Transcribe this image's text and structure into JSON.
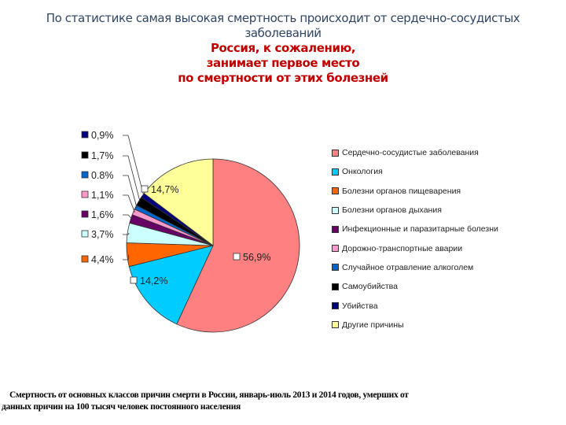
{
  "header": {
    "line1": "По статистике самая высокая смертность происходит от сердечно-сосудистых",
    "line2": "заболеваний",
    "line3": "Россия, к сожалению,",
    "line4": "занимает первое место",
    "line5": "по смертности от этих болезней"
  },
  "caption": {
    "line1": "Смертность от основных классов причин смерти в России, январь-июль 2013 и 2014 годов, умерших от",
    "line2": "данных причин на 100 тысяч человек постоянного населения"
  },
  "chart_data": {
    "type": "pie",
    "title": "",
    "start_angle_deg": 0,
    "direction": "clockwise",
    "legend_position": "right",
    "categories": [
      "Сердечно-сосудистые заболевания",
      "Онкология",
      "Болезни органов пищеварения",
      "Болезни органов дыхания",
      "Инфекционные и паразитарные болезни",
      "Дорожно-транспортные аварии",
      "Случайное отравление алкоголем",
      "Самоубийства",
      "Убийства",
      "Другие причины"
    ],
    "values": [
      56.9,
      14.2,
      4.4,
      3.7,
      1.6,
      1.1,
      0.8,
      1.7,
      0.9,
      14.7
    ],
    "labels": [
      "56,9%",
      "14,2%",
      "4,4%",
      "3,7%",
      "1,6%",
      "1,1%",
      "0.8%",
      "1,7%",
      "0,9%",
      "14,7%"
    ],
    "colors": [
      "#ff8080",
      "#00ccff",
      "#ff6600",
      "#ccffff",
      "#660066",
      "#ff99cc",
      "#0066cc",
      "#000000",
      "#000080",
      "#ffff99"
    ]
  }
}
